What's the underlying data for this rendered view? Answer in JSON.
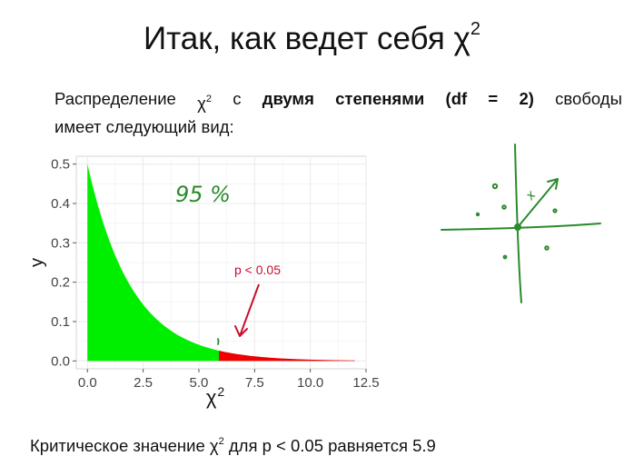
{
  "slide": {
    "title_text": "Итак, как ведет себя χ",
    "title_sup": "2",
    "body": {
      "w1": "Распределение",
      "w2a": "χ",
      "w2sup": "2",
      "w3": "с",
      "w4": "двумя",
      "w5": "степенями",
      "w6": "(df",
      "w7": "=",
      "w8": "2)",
      "w9": "свободы",
      "line2": "имеет следующий вид:"
    },
    "footer_prefix": "Критическое значение χ",
    "footer_sup": "2",
    "footer_suffix": " для p < 0.05 равняется 5.9",
    "handwritten_percent": "95 %",
    "handwritten_vector_label": "x"
  },
  "chart_data": {
    "type": "area",
    "function": "y = 0.5 * exp(-x / 2)",
    "x_range": [
      0,
      12
    ],
    "critical_value": 5.9,
    "xlabel": "χ",
    "xlabel_sup": "2",
    "ylabel": "y",
    "xlim": [
      -0.5,
      12.5
    ],
    "ylim": [
      -0.02,
      0.52
    ],
    "x_ticks": [
      0,
      2.5,
      5,
      7.5,
      10,
      12.5
    ],
    "x_tick_labels": [
      "0.0",
      "2.5",
      "5.0",
      "7.5",
      "10.0",
      "12.5"
    ],
    "y_ticks": [
      0,
      0.1,
      0.2,
      0.3,
      0.4,
      0.5
    ],
    "y_tick_labels": [
      "0.0",
      "0.1",
      "0.2",
      "0.3",
      "0.4",
      "0.5"
    ],
    "grid": true,
    "regions": [
      {
        "from": 0,
        "to": 5.9,
        "color": "#00ee00"
      },
      {
        "from": 5.9,
        "to": 12,
        "color": "#ee0000"
      }
    ],
    "annotation": {
      "text": "p < 0.05",
      "color": "#c8102e",
      "x": 7.3,
      "y": 0.22,
      "arrow_to": [
        6.9,
        0.05
      ]
    }
  },
  "colors": {
    "panel_bg": "#ffffff",
    "grid": "#ebebeb",
    "ink_green": "#2a8a2a"
  }
}
